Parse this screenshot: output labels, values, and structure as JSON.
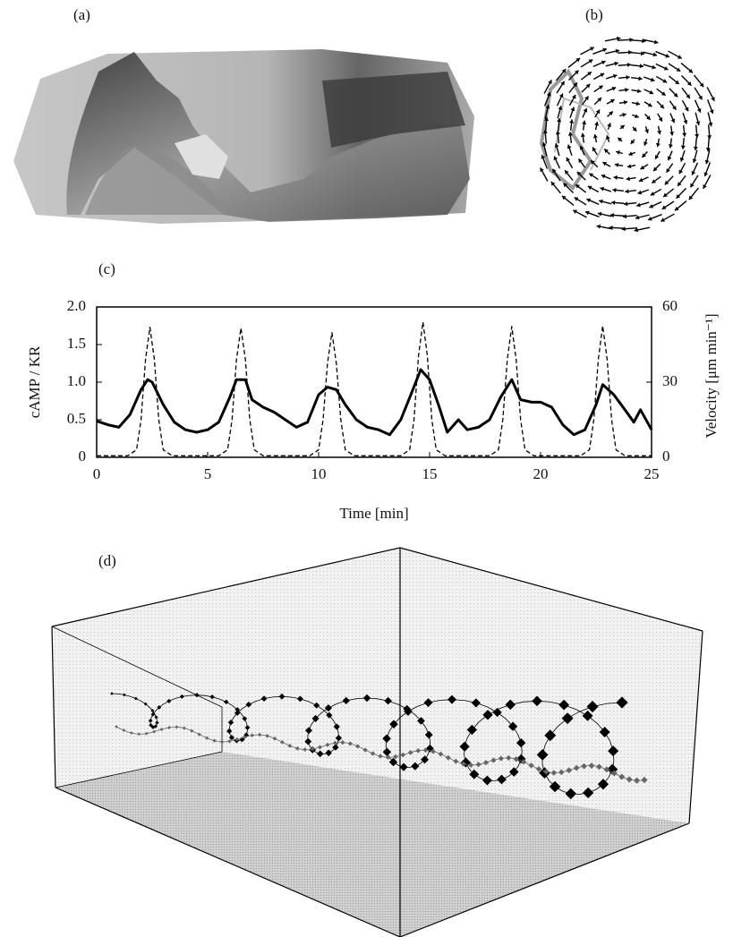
{
  "labels": {
    "a": "(a)",
    "b": "(b)",
    "d": "(d)"
  },
  "chart_data": {
    "type": "line",
    "panel_label": "(c)",
    "x_label": "Time [min]",
    "y_label": "cAMP / KR",
    "y2_label": "Velocity [μm min⁻¹]",
    "xlim": [
      0,
      25
    ],
    "xticks": [
      0,
      5,
      10,
      15,
      20,
      25
    ],
    "ylim": [
      0,
      2
    ],
    "yticks": [
      0,
      0.5,
      {
        "value": 1,
        "label": "1.0"
      },
      1.5,
      {
        "value": 2,
        "label": "2.0"
      }
    ],
    "y2lim": [
      0,
      60
    ],
    "y2ticks": [
      0,
      30,
      60
    ],
    "series": [
      {
        "color": "#000000",
        "style": "solid",
        "axis": "y2",
        "x": [
          0,
          0.5,
          1.0,
          1.5,
          2.0,
          2.3,
          2.5,
          3.0,
          3.5,
          4.0,
          4.5,
          5.0,
          5.5,
          6.0,
          6.3,
          6.7,
          7.0,
          7.5,
          8.0,
          8.5,
          9.0,
          9.5,
          10.0,
          10.4,
          10.8,
          11.2,
          11.7,
          12.2,
          12.7,
          13.2,
          13.7,
          14.2,
          14.6,
          15.0,
          15.4,
          15.8,
          16.3,
          16.7,
          17.2,
          17.7,
          18.2,
          18.7,
          19.1,
          19.6,
          20.0,
          20.5,
          21.0,
          21.5,
          22.0,
          22.5,
          22.8,
          23.3,
          23.8,
          24.2,
          24.5,
          25
        ],
        "values": [
          14.5,
          13,
          12,
          17,
          27,
          31,
          30,
          21,
          14,
          11,
          10,
          11,
          14,
          24,
          31,
          31,
          23,
          20,
          18,
          15,
          12,
          14,
          25,
          28,
          27,
          21,
          15,
          12,
          11,
          9,
          15,
          26,
          35,
          31,
          21,
          10,
          15,
          11,
          12,
          15,
          24,
          31,
          23,
          22,
          22,
          20,
          13,
          9,
          11,
          21,
          29,
          25,
          19,
          14,
          19,
          11
        ]
      },
      {
        "color": "#000000",
        "style": "dashed",
        "axis": "y",
        "x": [
          0,
          1.4,
          1.8,
          2.0,
          2.2,
          2.4,
          2.6,
          2.8,
          3.0,
          3.4,
          5.5,
          5.9,
          6.1,
          6.3,
          6.5,
          6.7,
          6.9,
          7.1,
          7.5,
          9.6,
          10.0,
          10.2,
          10.4,
          10.6,
          10.8,
          11.0,
          11.2,
          11.6,
          13.7,
          14.1,
          14.3,
          14.5,
          14.7,
          14.9,
          15.1,
          15.3,
          15.7,
          17.7,
          18.1,
          18.3,
          18.5,
          18.7,
          18.9,
          19.1,
          19.3,
          19.7,
          21.8,
          22.2,
          22.4,
          22.6,
          22.8,
          23.0,
          23.2,
          23.4,
          23.8,
          25
        ],
        "values": [
          0.02,
          0.02,
          0.1,
          0.5,
          1.3,
          1.73,
          1.3,
          0.5,
          0.1,
          0.02,
          0.02,
          0.1,
          0.5,
          1.3,
          1.72,
          1.3,
          0.5,
          0.1,
          0.02,
          0.02,
          0.1,
          0.5,
          1.25,
          1.66,
          1.25,
          0.5,
          0.1,
          0.02,
          0.02,
          0.1,
          0.5,
          1.35,
          1.8,
          1.35,
          0.5,
          0.1,
          0.02,
          0.02,
          0.1,
          0.5,
          1.3,
          1.74,
          1.3,
          0.5,
          0.1,
          0.02,
          0.02,
          0.1,
          0.5,
          1.3,
          1.75,
          1.3,
          0.5,
          0.1,
          0.02,
          0.02
        ]
      }
    ]
  }
}
